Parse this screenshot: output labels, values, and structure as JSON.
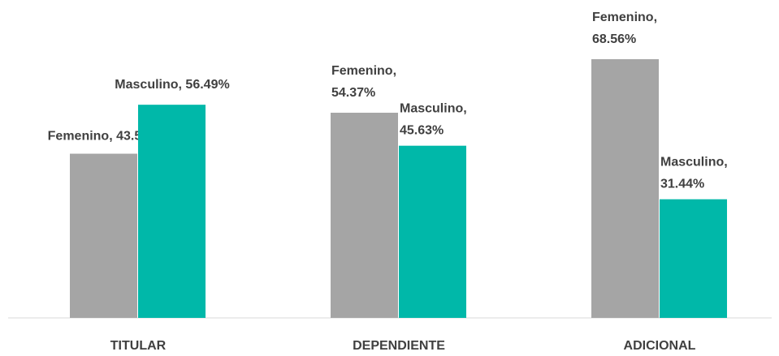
{
  "chart_data": {
    "type": "bar",
    "categories": [
      "TITULAR",
      "DEPENDIENTE",
      "ADICIONAL"
    ],
    "series": [
      {
        "name": "Femenino",
        "color": "#a5a5a5",
        "values": [
          43.51,
          54.37,
          68.56
        ],
        "value_labels": [
          "Femenino, 43.51%",
          "Femenino, 54.37%",
          "Femenino, 68.56%"
        ]
      },
      {
        "name": "Masculino",
        "color": "#00b8a9",
        "values": [
          56.49,
          45.63,
          31.44
        ],
        "value_labels": [
          "Masculino, 56.49%",
          "Masculino, 45.63%",
          "Masculino, 31.44%"
        ]
      }
    ]
  }
}
